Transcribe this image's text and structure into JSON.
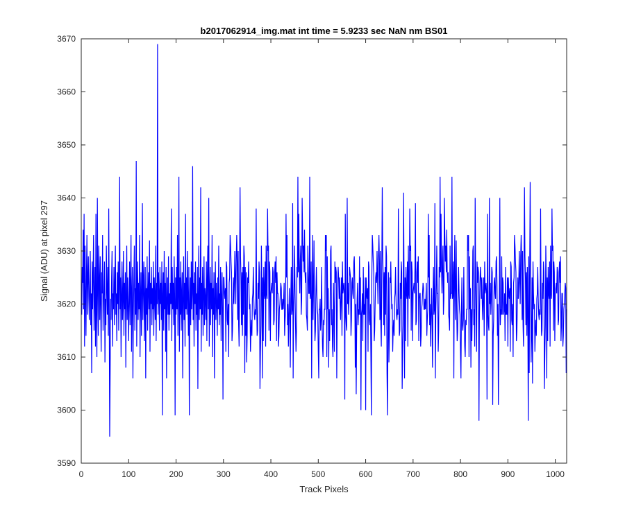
{
  "chart_data": {
    "type": "line",
    "title": "b2017062914_img.mat int time = 5.9233 sec  NaN nm BS01",
    "xlabel": "Track Pixels",
    "ylabel": "Signal (ADU) at pixel 297",
    "xlim": [
      0,
      1024
    ],
    "ylim": [
      3590,
      3670
    ],
    "xticks": [
      0,
      100,
      200,
      300,
      400,
      500,
      600,
      700,
      800,
      900,
      1000
    ],
    "yticks": [
      3590,
      3600,
      3610,
      3620,
      3630,
      3640,
      3650,
      3660,
      3670
    ],
    "grid": false,
    "legend": "none",
    "series_color": "#0000ff",
    "series": [
      {
        "values": [
          3618,
          3627,
          3624,
          3634,
          3619,
          3637,
          3612,
          3631,
          3622,
          3614,
          3626,
          3633,
          3618,
          3625,
          3629,
          3621,
          3617,
          3624,
          3630,
          3616,
          3622,
          3607,
          3628,
          3619,
          3626,
          3633,
          3615,
          3621,
          3627,
          3612,
          3637,
          3618,
          3610,
          3640,
          3623,
          3614,
          3631,
          3625,
          3617,
          3629,
          3620,
          3611,
          3626,
          3622,
          3633,
          3615,
          3619,
          3624,
          3628,
          3609,
          3621,
          3616,
          3631,
          3623,
          3618,
          3627,
          3614,
          3638,
          3620,
          3595,
          3608,
          3621,
          3617,
          3625,
          3630,
          3612,
          3622,
          3619,
          3627,
          3616,
          3624,
          3631,
          3618,
          3622,
          3613,
          3626,
          3620,
          3628,
          3615,
          3623,
          3644,
          3619,
          3625,
          3610,
          3622,
          3628,
          3617,
          3621,
          3630,
          3614,
          3624,
          3619,
          3626,
          3608,
          3622,
          3631,
          3617,
          3625,
          3620,
          3613
        ],
        "extra_values": [
          3621,
          3628,
          3616,
          3624,
          3633,
          3611,
          3622,
          3627,
          3606,
          3619,
          3625,
          3631,
          3615,
          3623,
          3618,
          3647,
          3612,
          3622,
          3628,
          3617,
          3624,
          3619,
          3633,
          3610,
          3621,
          3626,
          3614,
          3622,
          3639,
          3617,
          3624,
          3628,
          3613,
          3621,
          3627,
          3606,
          3623,
          3618,
          3629,
          3615,
          3622,
          3626,
          3619,
          3632,
          3611,
          3624,
          3620,
          3627,
          3616,
          3623,
          3619,
          3628,
          3614,
          3625,
          3621,
          3617,
          3631,
          3613,
          3624,
          3620,
          3669,
          3618,
          3626,
          3622,
          3615,
          3627,
          3620,
          3624,
          3617,
          3628,
          3599,
          3622,
          3626,
          3615,
          3630,
          3619,
          3624,
          3611,
          3627,
          3606,
          3621,
          3625,
          3618,
          3629,
          3615,
          3622,
          3618,
          3624,
          3620,
          3638,
          3613,
          3627,
          3619,
          3624,
          3616,
          3629,
          3621,
          3599,
          3625,
          3618
        ],
        "more_values": [
          3627,
          3619,
          3633,
          3614,
          3622,
          3644,
          3611,
          3625,
          3618,
          3628,
          3615,
          3622,
          3626,
          3606,
          3621,
          3629,
          3617,
          3624,
          3612,
          3637,
          3619,
          3625,
          3618,
          3630,
          3621,
          3614,
          3627,
          3599,
          3620,
          3625,
          3616,
          3628,
          3619,
          3622,
          3646,
          3617,
          3624,
          3612,
          3626,
          3620,
          3628,
          3615,
          3622,
          3618,
          3627,
          3604,
          3622,
          3631,
          3617,
          3625,
          3619,
          3642,
          3611,
          3624,
          3618,
          3627,
          3614,
          3622,
          3629,
          3616,
          3623,
          3621,
          3617,
          3628,
          3613,
          3625,
          3631,
          3619,
          3640,
          3612,
          3622,
          3627,
          3616,
          3624,
          3619,
          3633,
          3610,
          3623,
          3618,
          3626,
          3606,
          3621,
          3628,
          3617,
          3624,
          3620,
          3614,
          3625,
          3619,
          3631,
          3616,
          3622,
          3618,
          3627,
          3613,
          3621,
          3626,
          3619,
          3602,
          3625
        ]
      }
    ]
  }
}
